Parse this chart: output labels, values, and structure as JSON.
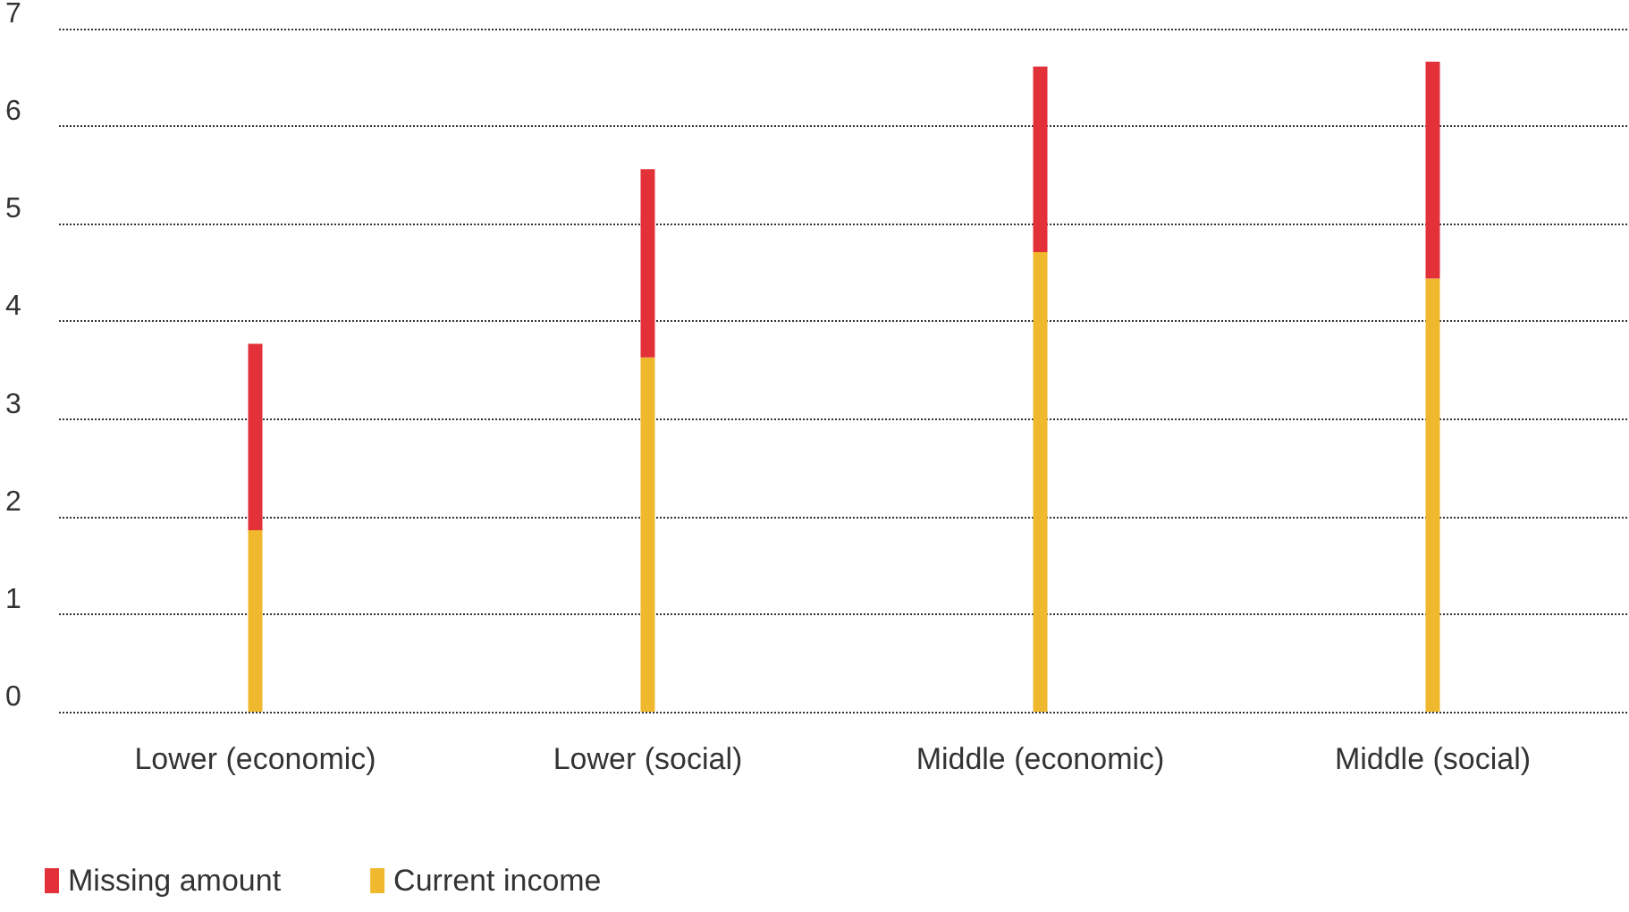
{
  "chart_data": {
    "type": "bar",
    "stacked": true,
    "categories": [
      "Lower (economic)",
      "Lower (social)",
      "Middle (economic)",
      "Middle (social)"
    ],
    "series": [
      {
        "name": "Current income",
        "color": "#f0b92d",
        "values": [
          1.86,
          3.63,
          4.71,
          4.44
        ]
      },
      {
        "name": "Missing amount",
        "color": "#e3313a",
        "values": [
          1.91,
          1.93,
          1.9,
          2.22
        ]
      }
    ],
    "ylim": [
      0,
      7
    ],
    "yticks": [
      0,
      1,
      2,
      3,
      4,
      5,
      6,
      7
    ],
    "grid": "y",
    "legend": "bottom left"
  }
}
